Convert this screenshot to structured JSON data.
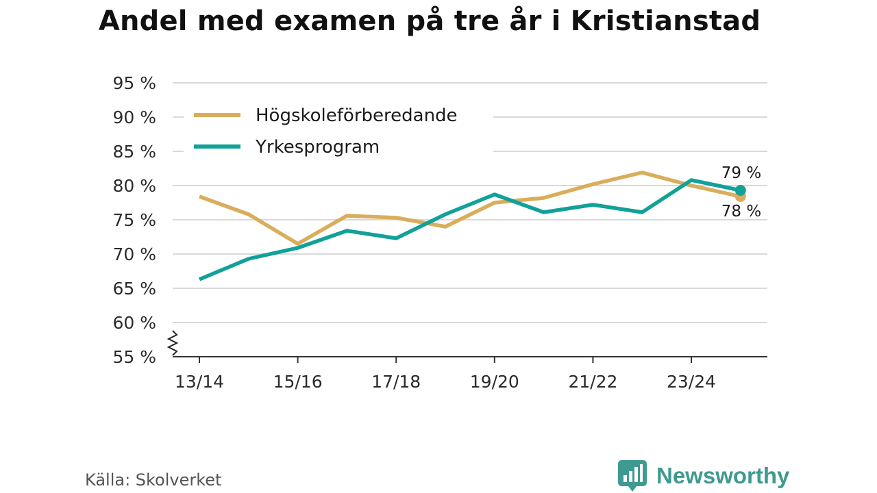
{
  "chart_data": {
    "type": "line",
    "title": "Andel med examen på tre år i Kristianstad",
    "x": [
      "13/14",
      "14/15",
      "15/16",
      "16/17",
      "17/18",
      "18/19",
      "19/20",
      "20/21",
      "21/22",
      "22/23",
      "23/24",
      "24/25"
    ],
    "x_tick_labels": [
      "13/14",
      "15/16",
      "17/18",
      "19/20",
      "21/22",
      "23/24"
    ],
    "y_ticks": [
      55,
      60,
      65,
      70,
      75,
      80,
      85,
      90,
      95
    ],
    "y_tick_labels": [
      "55 %",
      "60 %",
      "65 %",
      "70 %",
      "75 %",
      "80 %",
      "85 %",
      "90 %",
      "95 %"
    ],
    "ylim": [
      55,
      95
    ],
    "y_axis_break": true,
    "grid": "horizontal",
    "legend_position": "top-left",
    "xlabel": "",
    "ylabel": "",
    "series": [
      {
        "name": "Högskoleförberedande",
        "color": "#d9ad5b",
        "values": [
          78.4,
          75.8,
          71.5,
          75.6,
          75.3,
          74.0,
          77.5,
          78.2,
          80.2,
          81.9,
          80.0,
          78.4
        ],
        "end_label": "78 %"
      },
      {
        "name": "Yrkesprogram",
        "color": "#11a199",
        "values": [
          66.3,
          69.3,
          70.9,
          73.4,
          72.3,
          75.8,
          78.7,
          76.1,
          77.2,
          76.1,
          80.8,
          79.3
        ],
        "end_label": "79 %"
      }
    ]
  },
  "footer": {
    "source": "Källa: Skolverket",
    "brand": "Newsworthy",
    "brand_icon": "bar-chart-speech-bubble-icon",
    "brand_color": "#3f9a91"
  }
}
